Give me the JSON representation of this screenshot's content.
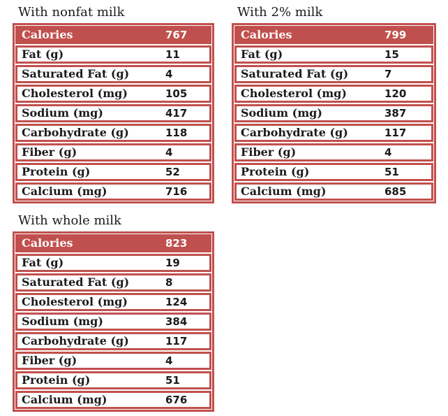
{
  "colors": {
    "accent_red": "#c0504d",
    "header_text": "#ffffff",
    "body_text": "#1b1b1b",
    "background": "#ffffff"
  },
  "tables": [
    {
      "title": "With nonfat milk",
      "header": {
        "label": "Calories",
        "value": "767"
      },
      "rows": [
        {
          "label": "Fat (g)",
          "value": "11"
        },
        {
          "label": "Saturated Fat (g)",
          "value": "4"
        },
        {
          "label": "Cholesterol (mg)",
          "value": "105"
        },
        {
          "label": "Sodium (mg)",
          "value": "417"
        },
        {
          "label": "Carbohydrate (g)",
          "value": "118"
        },
        {
          "label": "Fiber (g)",
          "value": "4"
        },
        {
          "label": "Protein (g)",
          "value": "52"
        },
        {
          "label": "Calcium (mg)",
          "value": "716"
        }
      ]
    },
    {
      "title": "With 2% milk",
      "header": {
        "label": "Calories",
        "value": "799"
      },
      "rows": [
        {
          "label": "Fat (g)",
          "value": "15"
        },
        {
          "label": "Saturated Fat (g)",
          "value": "7"
        },
        {
          "label": "Cholesterol (mg)",
          "value": "120"
        },
        {
          "label": "Sodium (mg)",
          "value": "387"
        },
        {
          "label": "Carbohydrate (g)",
          "value": "117"
        },
        {
          "label": "Fiber (g)",
          "value": "4"
        },
        {
          "label": "Protein (g)",
          "value": "51"
        },
        {
          "label": "Calcium (mg)",
          "value": "685"
        }
      ]
    },
    {
      "title": "With whole milk",
      "header": {
        "label": "Calories",
        "value": "823"
      },
      "rows": [
        {
          "label": "Fat (g)",
          "value": "19"
        },
        {
          "label": "Saturated Fat (g)",
          "value": "8"
        },
        {
          "label": "Cholesterol (mg)",
          "value": "124"
        },
        {
          "label": "Sodium (mg)",
          "value": "384"
        },
        {
          "label": "Carbohydrate (g)",
          "value": "117"
        },
        {
          "label": "Fiber (g)",
          "value": "4"
        },
        {
          "label": "Protein (g)",
          "value": "51"
        },
        {
          "label": "Calcium (mg)",
          "value": "676"
        }
      ]
    }
  ]
}
